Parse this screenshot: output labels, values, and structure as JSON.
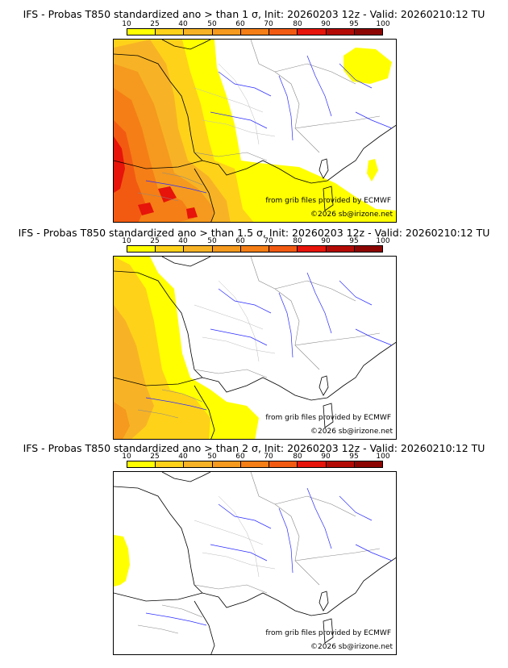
{
  "colorbar": {
    "ticks": [
      "10",
      "25",
      "40",
      "50",
      "60",
      "70",
      "80",
      "90",
      "95",
      "100"
    ],
    "colors": [
      "#ffff00",
      "#ffd21a",
      "#f7b325",
      "#f59a1e",
      "#f57e16",
      "#f25a12",
      "#e6140a",
      "#b40a05",
      "#8c0502"
    ]
  },
  "panels": [
    {
      "title": "IFS - Probas T850  standardized ano > than 1 σ, Init: 20260203 12z - Valid: 20260210:12 TU",
      "credit_source": "from grib files provided by ECMWF",
      "credit_copyright": "©2026 sb@irizone.net"
    },
    {
      "title": "IFS - Probas T850  standardized ano > than 1.5 σ, Init: 20260203 12z - Valid: 20260210:12 TU",
      "credit_source": "from grib files provided by ECMWF",
      "credit_copyright": "©2026 sb@irizone.net"
    },
    {
      "title": "IFS - Probas T850  standardized ano > than 2 σ, Init: 20260203 12z - Valid: 20260210:12 TU",
      "credit_source": "from grib files provided by ECMWF",
      "credit_copyright": "©2026 sb@irizone.net"
    }
  ]
}
